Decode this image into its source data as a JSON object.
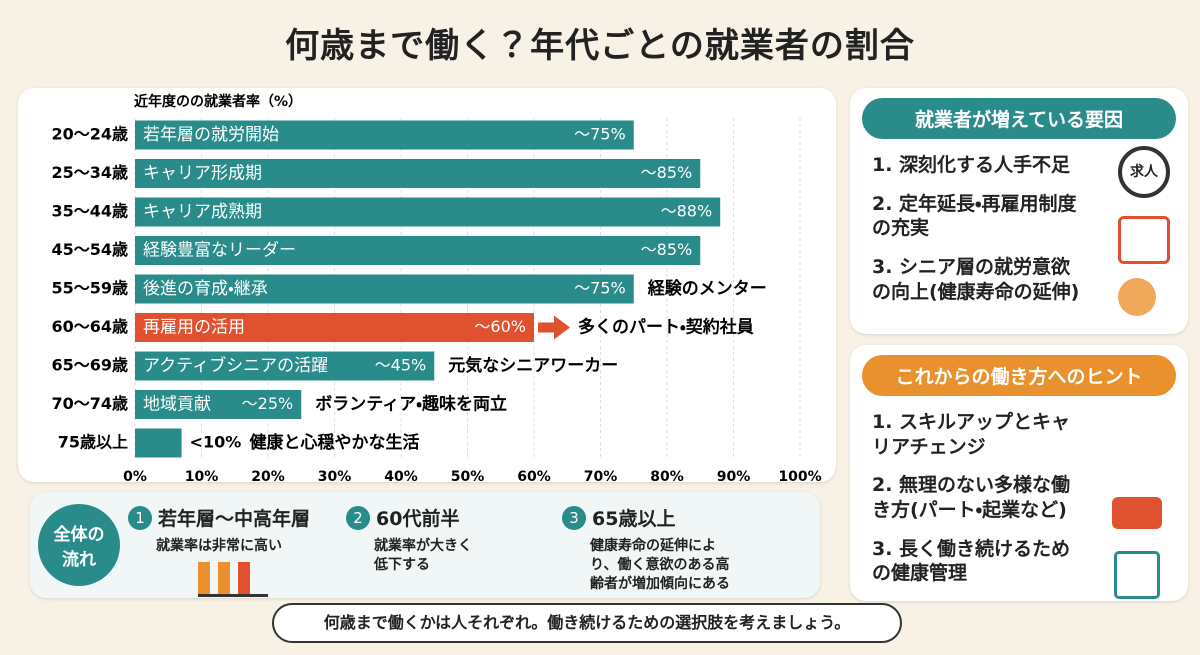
{
  "title": "何歳まで働く？年代ごとの就業者の割合",
  "chart_data": {
    "type": "barh",
    "axis_label": "近年度のの就業者率（%）",
    "categories": [
      "20～24歳",
      "25～34歳",
      "35～44歳",
      "45～54歳",
      "55～59歳",
      "60～64歳",
      "65～69歳",
      "70～74歳",
      "75歳以上"
    ],
    "values": [
      75,
      85,
      88,
      85,
      75,
      60,
      45,
      25,
      7
    ],
    "value_labels": [
      "～75%",
      "～85%",
      "～88%",
      "～85%",
      "～75%",
      "～60%",
      "～45%",
      "～25%",
      "<10%"
    ],
    "bar_labels": [
      "若年層の就労開始",
      "キャリア形成期",
      "キャリア成熟期",
      "経験豊富なリーダー",
      "後進の育成・継承",
      "再雇用の活用",
      "アクティブシニアの活躍",
      "地域貢献",
      null
    ],
    "annotations": [
      null,
      null,
      null,
      null,
      "経験のメンター",
      "多くのパート・契約社員",
      "元気なシニアワーカー",
      "ボランティア・趣味を両立",
      "健康と心穏やかな生活"
    ],
    "colors": [
      "#2a8b8b",
      "#2a8b8b",
      "#2a8b8b",
      "#2a8b8b",
      "#2a8b8b",
      "#e0512f",
      "#2a8b8b",
      "#2a8b8b",
      "#2a8b8b"
    ],
    "xlim": [
      0,
      100
    ],
    "xticks": [
      {
        "value": 0,
        "label": "0%"
      },
      {
        "value": 10,
        "label": "10%"
      },
      {
        "value": 20,
        "label": "20%"
      },
      {
        "value": 30,
        "label": "30%"
      },
      {
        "value": 40,
        "label": "40%"
      },
      {
        "value": 50,
        "label": "50%"
      },
      {
        "value": 60,
        "label": "60%"
      },
      {
        "value": 70,
        "label": "70%"
      },
      {
        "value": 80,
        "label": "80%"
      },
      {
        "value": 90,
        "label": "90%"
      },
      {
        "value": 100,
        "label": "100%"
      }
    ]
  },
  "factors": {
    "title": "就業者が増えている要因",
    "items": [
      "1. 深刻化する人手不足",
      "2. 定年延長・再雇用制度の充実",
      "3. シニア層の就労意欲の向上(健康寿命の延伸)"
    ],
    "badge": "求人"
  },
  "hints": {
    "title": "これからの働き方へのヒント",
    "items": [
      "1. スキルアップとキャリアチェンジ",
      "2. 無理のない多様な働き方(パート・起業など)",
      "3. 長く働き続けるための健康管理"
    ]
  },
  "flow": {
    "label": [
      "全体の",
      "流れ"
    ],
    "steps": [
      {
        "number": "1",
        "title": "若年層～中高年層",
        "text": "就業率は非常に高い"
      },
      {
        "number": "2",
        "title": "60代前半",
        "text": "就業率が大きく低下する"
      },
      {
        "number": "3",
        "title": "65歳以上",
        "text": "健康寿命の延伸により、働く意欲のある高齢者が増加傾向にある"
      }
    ]
  },
  "footer": "何歳まで働くかは人それぞれ。働き続けるための選択肢を考えましょう。"
}
